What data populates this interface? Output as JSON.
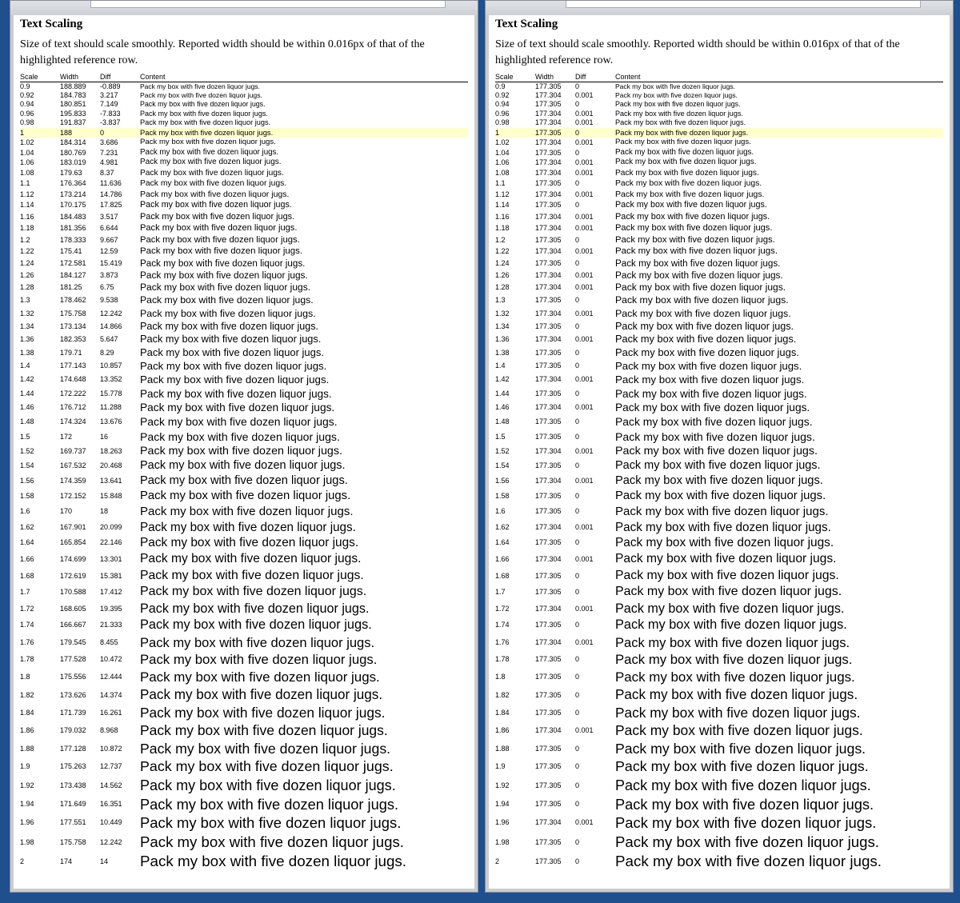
{
  "panels": [
    {
      "title": "Text Scaling",
      "description": "Size of text should scale smoothly. Reported width should be within 0.016px of that of the highlighted reference row.",
      "headers": [
        "Scale",
        "Width",
        "Diff",
        "Content"
      ],
      "rows": [
        [
          "0.9",
          "188.889",
          "-0.889",
          "Pack my box with five dozen liquor jugs."
        ],
        [
          "0.92",
          "184.783",
          "3.217",
          "Pack my box with five dozen liquor jugs."
        ],
        [
          "0.94",
          "180.851",
          "7.149",
          "Pack my box with five dozen liquor jugs."
        ],
        [
          "0.96",
          "195.833",
          "-7.833",
          "Pack my box with five dozen liquor jugs."
        ],
        [
          "0.98",
          "191.837",
          "-3.837",
          "Pack my box with five dozen liquor jugs."
        ],
        [
          "1",
          "188",
          "0",
          "Pack my box with five dozen liquor jugs."
        ],
        [
          "1.02",
          "184.314",
          "3.686",
          "Pack my box with five dozen liquor jugs."
        ],
        [
          "1.04",
          "180.769",
          "7.231",
          "Pack my box with five dozen liquor jugs."
        ],
        [
          "1.06",
          "183.019",
          "4.981",
          "Pack my box with five dozen liquor jugs."
        ],
        [
          "1.08",
          "179.63",
          "8.37",
          "Pack my box with five dozen liquor jugs."
        ],
        [
          "1.1",
          "176.364",
          "11.636",
          "Pack my box with five dozen liquor jugs."
        ],
        [
          "1.12",
          "173.214",
          "14.786",
          "Pack my box with five dozen liquor jugs."
        ],
        [
          "1.14",
          "170.175",
          "17.825",
          "Pack my box with five dozen liquor jugs."
        ],
        [
          "1.16",
          "184.483",
          "3.517",
          "Pack my box with five dozen liquor jugs."
        ],
        [
          "1.18",
          "181.356",
          "6.644",
          "Pack my box with five dozen liquor jugs."
        ],
        [
          "1.2",
          "178.333",
          "9.667",
          "Pack my box with five dozen liquor jugs."
        ],
        [
          "1.22",
          "175.41",
          "12.59",
          "Pack my box with five dozen liquor jugs."
        ],
        [
          "1.24",
          "172.581",
          "15.419",
          "Pack my box with five dozen liquor jugs."
        ],
        [
          "1.26",
          "184.127",
          "3.873",
          "Pack my box with five dozen liquor jugs."
        ],
        [
          "1.28",
          "181.25",
          "6.75",
          "Pack my box with five dozen liquor jugs."
        ],
        [
          "1.3",
          "178.462",
          "9.538",
          "Pack my box with five dozen liquor jugs."
        ],
        [
          "1.32",
          "175.758",
          "12.242",
          "Pack my box with five dozen liquor jugs."
        ],
        [
          "1.34",
          "173.134",
          "14.866",
          "Pack my box with five dozen liquor jugs."
        ],
        [
          "1.36",
          "182.353",
          "5.647",
          "Pack my box with five dozen liquor jugs."
        ],
        [
          "1.38",
          "179.71",
          "8.29",
          "Pack my box with five dozen liquor jugs."
        ],
        [
          "1.4",
          "177.143",
          "10.857",
          "Pack my box with five dozen liquor jugs."
        ],
        [
          "1.42",
          "174.648",
          "13.352",
          "Pack my box with five dozen liquor jugs."
        ],
        [
          "1.44",
          "172.222",
          "15.778",
          "Pack my box with five dozen liquor jugs."
        ],
        [
          "1.46",
          "176.712",
          "11.288",
          "Pack my box with five dozen liquor jugs."
        ],
        [
          "1.48",
          "174.324",
          "13.676",
          "Pack my box with five dozen liquor jugs."
        ],
        [
          "1.5",
          "172",
          "16",
          "Pack my box with five dozen liquor jugs."
        ],
        [
          "1.52",
          "169.737",
          "18.263",
          "Pack my box with five dozen liquor jugs."
        ],
        [
          "1.54",
          "167.532",
          "20.468",
          "Pack my box with five dozen liquor jugs."
        ],
        [
          "1.56",
          "174.359",
          "13.641",
          "Pack my box with five dozen liquor jugs."
        ],
        [
          "1.58",
          "172.152",
          "15.848",
          "Pack my box with five dozen liquor jugs."
        ],
        [
          "1.6",
          "170",
          "18",
          "Pack my box with five dozen liquor jugs."
        ],
        [
          "1.62",
          "167.901",
          "20.099",
          "Pack my box with five dozen liquor jugs."
        ],
        [
          "1.64",
          "165.854",
          "22.146",
          "Pack my box with five dozen liquor jugs."
        ],
        [
          "1.66",
          "174.699",
          "13.301",
          "Pack my box with five dozen liquor jugs."
        ],
        [
          "1.68",
          "172.619",
          "15.381",
          "Pack my box with five dozen liquor jugs."
        ],
        [
          "1.7",
          "170.588",
          "17.412",
          "Pack my box with five dozen liquor jugs."
        ],
        [
          "1.72",
          "168.605",
          "19.395",
          "Pack my box with five dozen liquor jugs."
        ],
        [
          "1.74",
          "166.667",
          "21.333",
          "Pack my box with five dozen liquor jugs."
        ],
        [
          "1.76",
          "179.545",
          "8.455",
          "Pack my box with five dozen liquor jugs."
        ],
        [
          "1.78",
          "177.528",
          "10.472",
          "Pack my box with five dozen liquor jugs."
        ],
        [
          "1.8",
          "175.556",
          "12.444",
          "Pack my box with five dozen liquor jugs."
        ],
        [
          "1.82",
          "173.626",
          "14.374",
          "Pack my box with five dozen liquor jugs."
        ],
        [
          "1.84",
          "171.739",
          "16.261",
          "Pack my box with five dozen liquor jugs."
        ],
        [
          "1.86",
          "179.032",
          "8.968",
          "Pack my box with five dozen liquor jugs."
        ],
        [
          "1.88",
          "177.128",
          "10.872",
          "Pack my box with five dozen liquor jugs."
        ],
        [
          "1.9",
          "175.263",
          "12.737",
          "Pack my box with five dozen liquor jugs."
        ],
        [
          "1.92",
          "173.438",
          "14.562",
          "Pack my box with five dozen liquor jugs."
        ],
        [
          "1.94",
          "171.649",
          "16.351",
          "Pack my box with five dozen liquor jugs."
        ],
        [
          "1.96",
          "177.551",
          "10.449",
          "Pack my box with five dozen liquor jugs."
        ],
        [
          "1.98",
          "175.758",
          "12.242",
          "Pack my box with five dozen liquor jugs."
        ],
        [
          "2",
          "174",
          "14",
          "Pack my box with five dozen liquor jugs."
        ]
      ]
    },
    {
      "title": "Text Scaling",
      "description": "Size of text should scale smoothly. Reported width should be within 0.016px of that of the highlighted reference row.",
      "headers": [
        "Scale",
        "Width",
        "Diff",
        "Content"
      ],
      "rows": [
        [
          "0.9",
          "177.305",
          "0",
          "Pack my box with five dozen liquor jugs."
        ],
        [
          "0.92",
          "177.304",
          "0.001",
          "Pack my box with five dozen liquor jugs."
        ],
        [
          "0.94",
          "177.305",
          "0",
          "Pack my box with five dozen liquor jugs."
        ],
        [
          "0.96",
          "177.304",
          "0.001",
          "Pack my box with five dozen liquor jugs."
        ],
        [
          "0.98",
          "177.304",
          "0.001",
          "Pack my box with five dozen liquor jugs."
        ],
        [
          "1",
          "177.305",
          "0",
          "Pack my box with five dozen liquor jugs."
        ],
        [
          "1.02",
          "177.304",
          "0.001",
          "Pack my box with five dozen liquor jugs."
        ],
        [
          "1.04",
          "177.305",
          "0",
          "Pack my box with five dozen liquor jugs."
        ],
        [
          "1.06",
          "177.304",
          "0.001",
          "Pack my box with five dozen liquor jugs."
        ],
        [
          "1.08",
          "177.304",
          "0.001",
          "Pack my box with five dozen liquor jugs."
        ],
        [
          "1.1",
          "177.305",
          "0",
          "Pack my box with five dozen liquor jugs."
        ],
        [
          "1.12",
          "177.304",
          "0.001",
          "Pack my box with five dozen liquor jugs."
        ],
        [
          "1.14",
          "177.305",
          "0",
          "Pack my box with five dozen liquor jugs."
        ],
        [
          "1.16",
          "177.304",
          "0.001",
          "Pack my box with five dozen liquor jugs."
        ],
        [
          "1.18",
          "177.304",
          "0.001",
          "Pack my box with five dozen liquor jugs."
        ],
        [
          "1.2",
          "177.305",
          "0",
          "Pack my box with five dozen liquor jugs."
        ],
        [
          "1.22",
          "177.304",
          "0.001",
          "Pack my box with five dozen liquor jugs."
        ],
        [
          "1.24",
          "177.305",
          "0",
          "Pack my box with five dozen liquor jugs."
        ],
        [
          "1.26",
          "177.304",
          "0.001",
          "Pack my box with five dozen liquor jugs."
        ],
        [
          "1.28",
          "177.304",
          "0.001",
          "Pack my box with five dozen liquor jugs."
        ],
        [
          "1.3",
          "177.305",
          "0",
          "Pack my box with five dozen liquor jugs."
        ],
        [
          "1.32",
          "177.304",
          "0.001",
          "Pack my box with five dozen liquor jugs."
        ],
        [
          "1.34",
          "177.305",
          "0",
          "Pack my box with five dozen liquor jugs."
        ],
        [
          "1.36",
          "177.304",
          "0.001",
          "Pack my box with five dozen liquor jugs."
        ],
        [
          "1.38",
          "177.305",
          "0",
          "Pack my box with five dozen liquor jugs."
        ],
        [
          "1.4",
          "177.305",
          "0",
          "Pack my box with five dozen liquor jugs."
        ],
        [
          "1.42",
          "177.304",
          "0.001",
          "Pack my box with five dozen liquor jugs."
        ],
        [
          "1.44",
          "177.305",
          "0",
          "Pack my box with five dozen liquor jugs."
        ],
        [
          "1.46",
          "177.304",
          "0.001",
          "Pack my box with five dozen liquor jugs."
        ],
        [
          "1.48",
          "177.305",
          "0",
          "Pack my box with five dozen liquor jugs."
        ],
        [
          "1.5",
          "177.305",
          "0",
          "Pack my box with five dozen liquor jugs."
        ],
        [
          "1.52",
          "177.304",
          "0.001",
          "Pack my box with five dozen liquor jugs."
        ],
        [
          "1.54",
          "177.305",
          "0",
          "Pack my box with five dozen liquor jugs."
        ],
        [
          "1.56",
          "177.304",
          "0.001",
          "Pack my box with five dozen liquor jugs."
        ],
        [
          "1.58",
          "177.305",
          "0",
          "Pack my box with five dozen liquor jugs."
        ],
        [
          "1.6",
          "177.305",
          "0",
          "Pack my box with five dozen liquor jugs."
        ],
        [
          "1.62",
          "177.304",
          "0.001",
          "Pack my box with five dozen liquor jugs."
        ],
        [
          "1.64",
          "177.305",
          "0",
          "Pack my box with five dozen liquor jugs."
        ],
        [
          "1.66",
          "177.304",
          "0.001",
          "Pack my box with five dozen liquor jugs."
        ],
        [
          "1.68",
          "177.305",
          "0",
          "Pack my box with five dozen liquor jugs."
        ],
        [
          "1.7",
          "177.305",
          "0",
          "Pack my box with five dozen liquor jugs."
        ],
        [
          "1.72",
          "177.304",
          "0.001",
          "Pack my box with five dozen liquor jugs."
        ],
        [
          "1.74",
          "177.305",
          "0",
          "Pack my box with five dozen liquor jugs."
        ],
        [
          "1.76",
          "177.304",
          "0.001",
          "Pack my box with five dozen liquor jugs."
        ],
        [
          "1.78",
          "177.305",
          "0",
          "Pack my box with five dozen liquor jugs."
        ],
        [
          "1.8",
          "177.305",
          "0",
          "Pack my box with five dozen liquor jugs."
        ],
        [
          "1.82",
          "177.305",
          "0",
          "Pack my box with five dozen liquor jugs."
        ],
        [
          "1.84",
          "177.305",
          "0",
          "Pack my box with five dozen liquor jugs."
        ],
        [
          "1.86",
          "177.304",
          "0.001",
          "Pack my box with five dozen liquor jugs."
        ],
        [
          "1.88",
          "177.305",
          "0",
          "Pack my box with five dozen liquor jugs."
        ],
        [
          "1.9",
          "177.305",
          "0",
          "Pack my box with five dozen liquor jugs."
        ],
        [
          "1.92",
          "177.305",
          "0",
          "Pack my box with five dozen liquor jugs."
        ],
        [
          "1.94",
          "177.305",
          "0",
          "Pack my box with five dozen liquor jugs."
        ],
        [
          "1.96",
          "177.304",
          "0.001",
          "Pack my box with five dozen liquor jugs."
        ],
        [
          "1.98",
          "177.305",
          "0",
          "Pack my box with five dozen liquor jugs."
        ],
        [
          "2",
          "177.305",
          "0",
          "Pack my box with five dozen liquor jugs."
        ]
      ]
    }
  ]
}
